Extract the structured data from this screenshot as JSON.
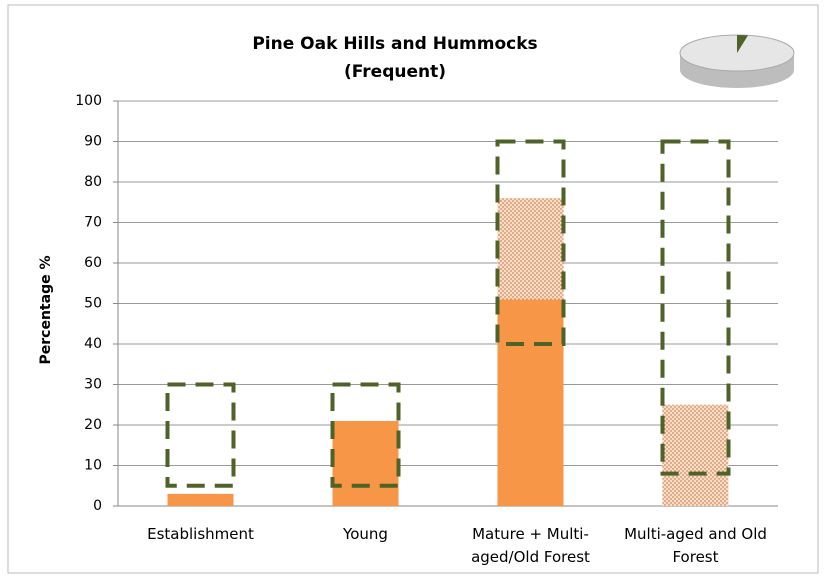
{
  "chart_data": {
    "type": "bar",
    "title": [
      "Pine Oak Hills and Hummocks",
      "(Frequent)"
    ],
    "y_label": "Percentage %",
    "categories": [
      "Establishment",
      "Young",
      "Mature + Multi-aged/Old Forest",
      "Multi-aged and Old Forest"
    ],
    "series": [
      {
        "color": "#f79646",
        "values": [
          3,
          21,
          51,
          0
        ]
      },
      {
        "color": "#f79646",
        "pattern": "dots",
        "values": [
          0,
          0,
          25,
          25
        ]
      }
    ],
    "ranges": {
      "color": "#4f6228",
      "low": [
        5,
        5,
        40,
        8
      ],
      "high": [
        30,
        30,
        90,
        90
      ]
    },
    "stacked": true,
    "ylim": [
      0,
      100
    ],
    "yticks": [
      0,
      10,
      20,
      30,
      40,
      50,
      60,
      70,
      80,
      90,
      100
    ],
    "grid": true
  }
}
